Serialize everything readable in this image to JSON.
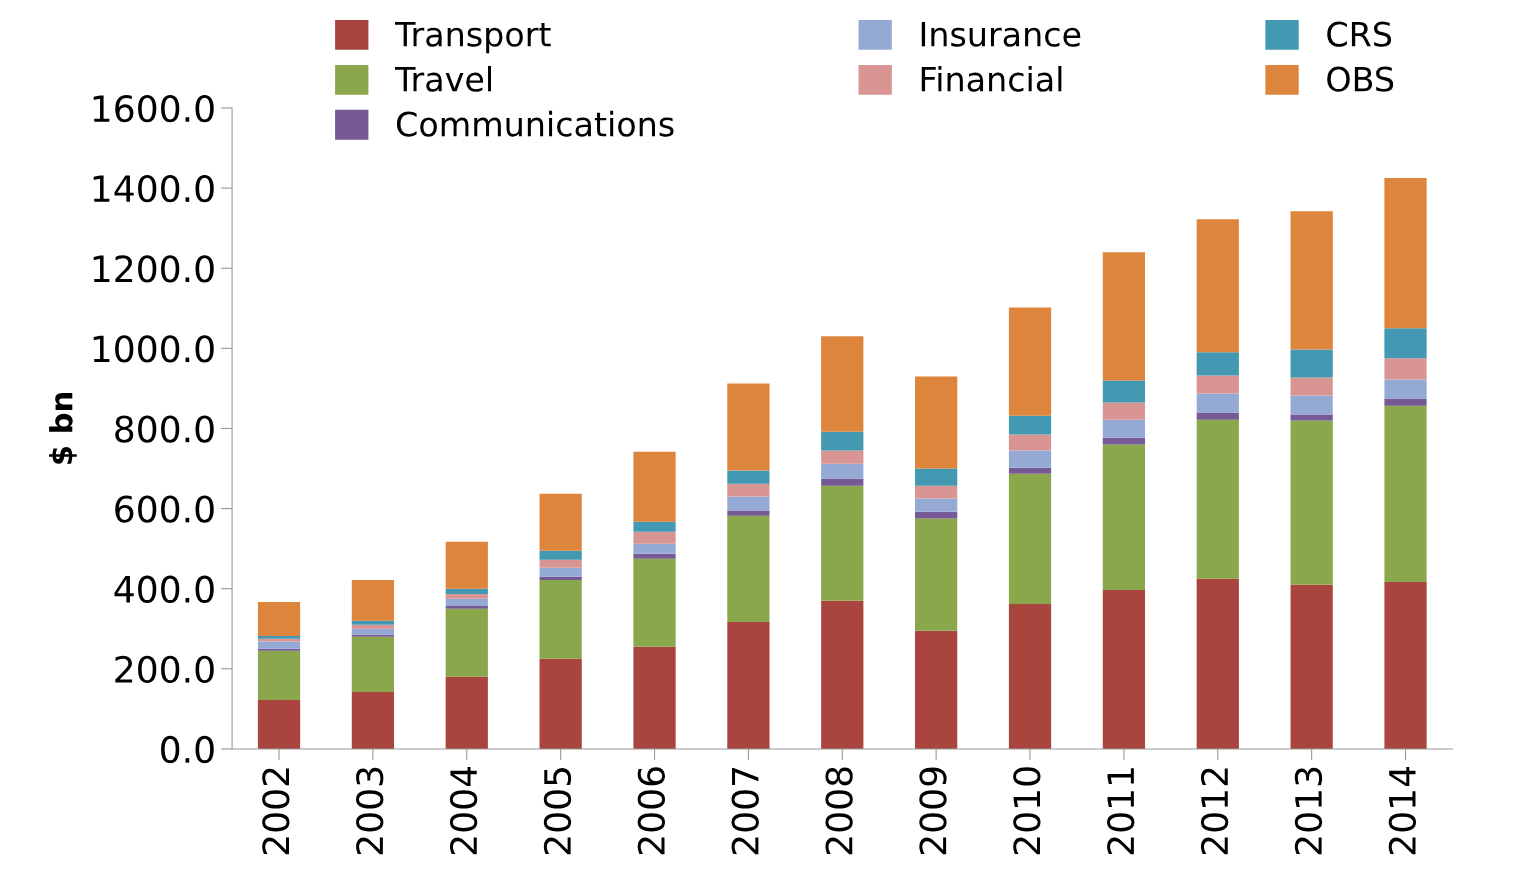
{
  "chart_data": {
    "type": "bar",
    "stacked": true,
    "ylabel": "$ bn",
    "categories": [
      "2002",
      "2003",
      "2004",
      "2005",
      "2006",
      "2007",
      "2008",
      "2009",
      "2010",
      "2011",
      "2012",
      "2013",
      "2014"
    ],
    "series": [
      {
        "name": "Transport",
        "color": "#a9443f",
        "values": [
          122,
          142,
          180,
          225,
          255,
          317,
          370,
          295,
          362,
          397,
          425,
          410,
          417
        ]
      },
      {
        "name": "Travel",
        "color": "#8ba74b",
        "values": [
          123,
          138,
          170,
          197,
          220,
          265,
          287,
          280,
          325,
          363,
          397,
          410,
          440
        ]
      },
      {
        "name": "Communications",
        "color": "#765a96",
        "values": [
          5,
          5,
          7,
          8,
          12,
          13,
          18,
          17,
          15,
          17,
          18,
          15,
          18
        ]
      },
      {
        "name": "Insurance",
        "color": "#94aad5",
        "values": [
          18,
          15,
          18,
          22,
          25,
          35,
          37,
          33,
          43,
          45,
          47,
          47,
          47
        ]
      },
      {
        "name": "Financial",
        "color": "#d99594",
        "values": [
          7,
          10,
          12,
          20,
          30,
          32,
          33,
          32,
          40,
          43,
          45,
          45,
          53
        ]
      },
      {
        "name": "CRS",
        "color": "#4299b1",
        "values": [
          7,
          10,
          13,
          23,
          25,
          33,
          47,
          43,
          47,
          55,
          58,
          70,
          75
        ]
      },
      {
        "name": "OBS",
        "color": "#dd853c",
        "values": [
          85,
          102,
          117,
          142,
          175,
          217,
          238,
          230,
          270,
          320,
          332,
          345,
          375
        ]
      }
    ],
    "ylim": [
      0,
      1600
    ],
    "yticks": [
      {
        "value": 0,
        "label": "0.0"
      },
      {
        "value": 200,
        "label": "200.0"
      },
      {
        "value": 400,
        "label": "400.0"
      },
      {
        "value": 600,
        "label": "600.0"
      },
      {
        "value": 800,
        "label": "800.0"
      },
      {
        "value": 1000,
        "label": "1000.0"
      },
      {
        "value": 1200,
        "label": "1200.0"
      },
      {
        "value": 1400,
        "label": "1400.0"
      },
      {
        "value": 1600,
        "label": "1600.0"
      }
    ],
    "grid": false,
    "legend": "top"
  }
}
